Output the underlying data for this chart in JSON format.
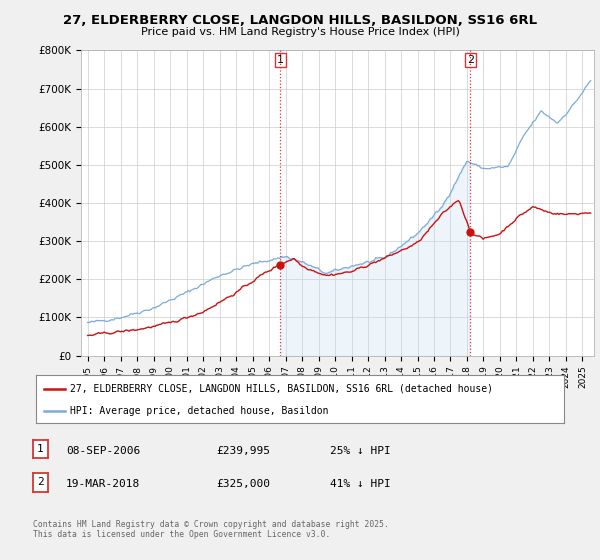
{
  "title_line1": "27, ELDERBERRY CLOSE, LANGDON HILLS, BASILDON, SS16 6RL",
  "title_line2": "Price paid vs. HM Land Registry's House Price Index (HPI)",
  "ylim": [
    0,
    800000
  ],
  "yticks": [
    0,
    100000,
    200000,
    300000,
    400000,
    500000,
    600000,
    700000,
    800000
  ],
  "ytick_labels": [
    "£0",
    "£100K",
    "£200K",
    "£300K",
    "£400K",
    "£500K",
    "£600K",
    "£700K",
    "£800K"
  ],
  "sale1_date_label": "08-SEP-2006",
  "sale1_price": 239995,
  "sale1_pct": "25% ↓ HPI",
  "sale1_x": 2006.69,
  "sale2_date_label": "19-MAR-2018",
  "sale2_price": 325000,
  "sale2_pct": "41% ↓ HPI",
  "sale2_x": 2018.21,
  "hpi_color": "#7aabdb",
  "hpi_fill_color": "#c8dff0",
  "price_color": "#cc1111",
  "vline_color": "#dd3333",
  "background_color": "#f0f0f0",
  "plot_bg_color": "#ffffff",
  "legend_label_price": "27, ELDERBERRY CLOSE, LANGDON HILLS, BASILDON, SS16 6RL (detached house)",
  "legend_label_hpi": "HPI: Average price, detached house, Basildon",
  "footnote": "Contains HM Land Registry data © Crown copyright and database right 2025.\nThis data is licensed under the Open Government Licence v3.0.",
  "xstart": 1995,
  "xend": 2025
}
